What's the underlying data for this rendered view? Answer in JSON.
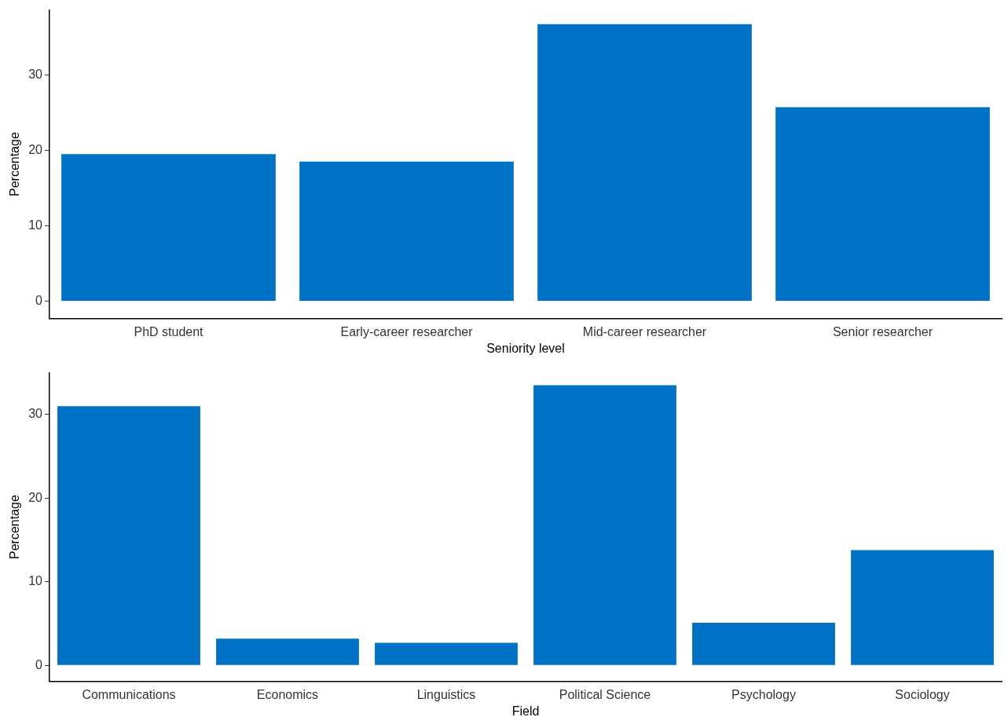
{
  "chart_data": [
    {
      "type": "bar",
      "xlabel": "Seniority level",
      "ylabel": "Percentage",
      "categories": [
        "PhD student",
        "Early-career researcher",
        "Mid-career researcher",
        "Senior researcher"
      ],
      "values": [
        19.5,
        18.5,
        36.7,
        25.7
      ],
      "color": "#0072c6",
      "ylim": [
        -2.3,
        38.6
      ],
      "yticks": [
        0,
        10,
        20,
        30
      ],
      "grid": false,
      "legend": false
    },
    {
      "type": "bar",
      "xlabel": "Field",
      "ylabel": "Percentage",
      "categories": [
        "Communications",
        "Economics",
        "Linguistics",
        "Political Science",
        "Psychology",
        "Sociology"
      ],
      "values": [
        31.0,
        3.2,
        2.7,
        33.5,
        5.1,
        13.8
      ],
      "color": "#0072c6",
      "ylim": [
        -1.9,
        35.0
      ],
      "yticks": [
        0,
        10,
        20,
        30
      ],
      "grid": false,
      "legend": false
    }
  ]
}
